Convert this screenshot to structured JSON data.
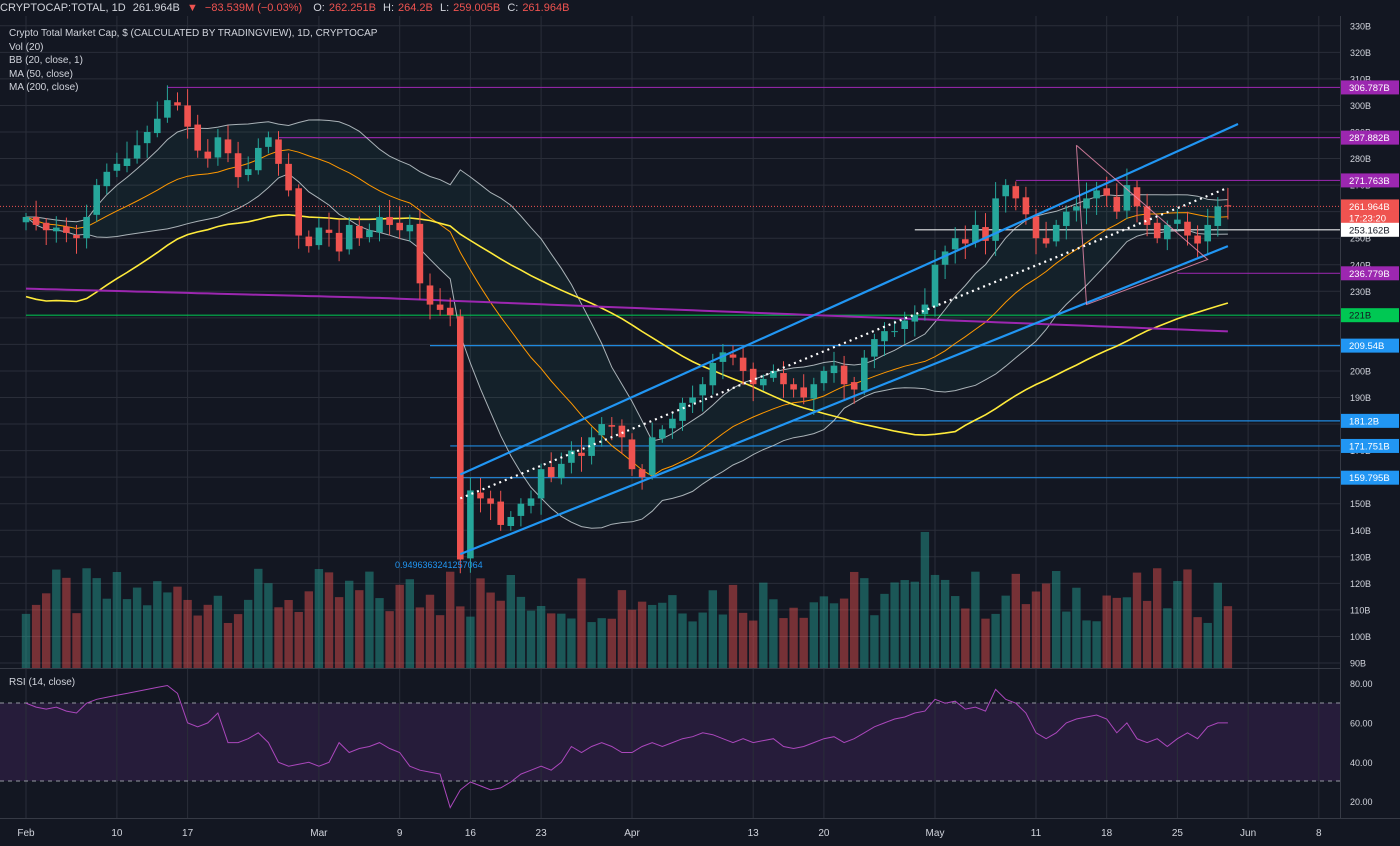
{
  "header": {
    "symbol": "CRYPTOCAP:TOTAL, 1D",
    "last": "261.964B",
    "change": "−83.539M (−0.03%)",
    "open_label": "O:",
    "open": "262.251B",
    "high_label": "H:",
    "high": "264.2B",
    "low_label": "L:",
    "low": "259.005B",
    "close_label": "C:",
    "close": "261.964B"
  },
  "legend": {
    "title": "Crypto Total Market Cap, $ (CALCULATED BY TRADINGVIEW), 1D, CRYPTOCAP",
    "vol": "Vol (20)",
    "bb": "BB (20, close, 1)",
    "ma50": "MA (50, close)",
    "ma200": "MA (200, close)"
  },
  "rsi_label": "RSI (14, close)",
  "annotation": "0.9496363241257064",
  "price_tags": [
    {
      "text": "306.787B",
      "value": 306.787,
      "color": "#9c27b0",
      "text_color": "#ffffff"
    },
    {
      "text": "287.882B",
      "value": 287.882,
      "color": "#9c27b0",
      "text_color": "#ffffff"
    },
    {
      "text": "271.763B",
      "value": 271.763,
      "color": "#9c27b0",
      "text_color": "#ffffff"
    },
    {
      "text": "261.964B",
      "value": 261.964,
      "color": "#ef5350",
      "text_color": "#ffffff"
    },
    {
      "text": "17:23:20",
      "value": 257.6,
      "color": "#ef5350",
      "text_color": "#ffffff"
    },
    {
      "text": "253.162B",
      "value": 253.162,
      "color": "#ffffff",
      "text_color": "#131722"
    },
    {
      "text": "236.779B",
      "value": 236.779,
      "color": "#9c27b0",
      "text_color": "#ffffff"
    },
    {
      "text": "221B",
      "value": 221,
      "color": "#00c853",
      "text_color": "#131722"
    },
    {
      "text": "209.54B",
      "value": 209.54,
      "color": "#2196f3",
      "text_color": "#ffffff"
    },
    {
      "text": "181.2B",
      "value": 181.2,
      "color": "#2196f3",
      "text_color": "#ffffff"
    },
    {
      "text": "171.751B",
      "value": 171.751,
      "color": "#2196f3",
      "text_color": "#ffffff"
    },
    {
      "text": "159.795B",
      "value": 159.795,
      "color": "#2196f3",
      "text_color": "#ffffff"
    }
  ],
  "chart_data": {
    "type": "candlestick",
    "y_ticks": [
      "90B",
      "100B",
      "110B",
      "120B",
      "130B",
      "140B",
      "150B",
      "160B",
      "170B",
      "180B",
      "190B",
      "200B",
      "210B",
      "220B",
      "230B",
      "240B",
      "250B",
      "260B",
      "270B",
      "280B",
      "290B",
      "300B",
      "310B",
      "320B",
      "330B"
    ],
    "ylim": [
      90,
      330
    ],
    "x_ticks": [
      {
        "label": "Feb",
        "day": 0
      },
      {
        "label": "10",
        "day": 9
      },
      {
        "label": "17",
        "day": 16
      },
      {
        "label": "Mar",
        "day": 29
      },
      {
        "label": "9",
        "day": 37
      },
      {
        "label": "16",
        "day": 44
      },
      {
        "label": "23",
        "day": 51
      },
      {
        "label": "Apr",
        "day": 60
      },
      {
        "label": "13",
        "day": 72
      },
      {
        "label": "20",
        "day": 79
      },
      {
        "label": "May",
        "day": 90
      },
      {
        "label": "11",
        "day": 100
      },
      {
        "label": "18",
        "day": 107
      },
      {
        "label": "25",
        "day": 114
      },
      {
        "label": "Jun",
        "day": 121
      },
      {
        "label": "8",
        "day": 128
      }
    ],
    "close": [
      258,
      255,
      253,
      254,
      252,
      250,
      258,
      270,
      275,
      278,
      280,
      285,
      290,
      295,
      302,
      300,
      292,
      283,
      280,
      288,
      282,
      273,
      276,
      284,
      288,
      278,
      268,
      251,
      247,
      254,
      252,
      245,
      255,
      250,
      253,
      258,
      255,
      253,
      255,
      233,
      225,
      223,
      221,
      129,
      155,
      152,
      150,
      142,
      145,
      150,
      152,
      163,
      160,
      165,
      170,
      168,
      175,
      180,
      179,
      175,
      163,
      160,
      175,
      178,
      182,
      188,
      190,
      195,
      203,
      207,
      205,
      200,
      195,
      197,
      200,
      195,
      193,
      190,
      195,
      200,
      202,
      195,
      193,
      205,
      212,
      215,
      215,
      219,
      221,
      225,
      240,
      245,
      250,
      248,
      255,
      249,
      265,
      270,
      265,
      259,
      250,
      248,
      255,
      260,
      262,
      265,
      268,
      266,
      260,
      270,
      262,
      255,
      250,
      255,
      257,
      251,
      248,
      255,
      262,
      261.964
    ],
    "rsi": [
      70,
      68,
      67,
      68,
      66,
      65,
      70,
      72,
      73,
      74,
      75,
      76,
      77,
      78,
      79,
      75,
      60,
      58,
      60,
      65,
      50,
      50,
      52,
      55,
      50,
      40,
      38,
      39,
      40,
      38,
      40,
      50,
      45,
      47,
      48,
      50,
      47,
      45,
      38,
      36,
      35,
      34,
      17,
      26,
      30,
      28,
      26,
      27,
      30,
      34,
      36,
      38,
      36,
      40,
      48,
      45,
      48,
      50,
      48,
      45,
      45,
      48,
      50,
      48,
      50,
      52,
      53,
      55,
      54,
      52,
      50,
      52,
      50,
      51,
      52,
      48,
      47,
      48,
      50,
      52,
      53,
      50,
      52,
      55,
      58,
      60,
      62,
      63,
      65,
      66,
      72,
      70,
      71,
      67,
      68,
      66,
      77,
      72,
      70,
      65,
      55,
      52,
      55,
      60,
      62,
      63,
      64,
      62,
      55,
      60,
      52,
      50,
      52,
      48,
      52,
      55,
      52,
      58,
      60,
      60
    ]
  }
}
